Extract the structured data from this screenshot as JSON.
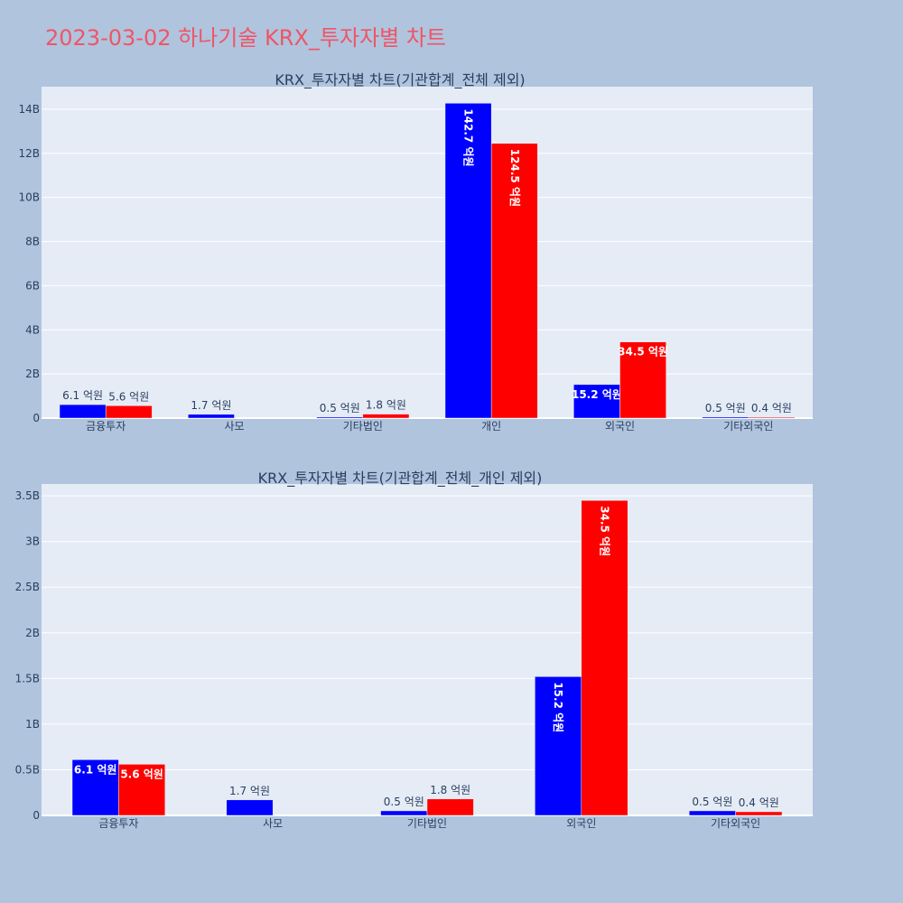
{
  "title": "2023-03-02 하나기술 KRX_투자자별 차트",
  "colors": {
    "series1": "#0000ff",
    "series2": "#ff0000",
    "background": "#b0c4de",
    "plot_bg": "#e5ecf6"
  },
  "chart_data": [
    {
      "type": "bar",
      "title": "KRX_투자자별 차트(기관합계_전체 제외)",
      "categories": [
        "금융투자",
        "사모",
        "기타법인",
        "개인",
        "외국인",
        "기타외국인"
      ],
      "series": [
        {
          "values": [
            0.61,
            0.17,
            0.05,
            14.27,
            1.52,
            0.05
          ],
          "labels": [
            "6.1 억원",
            "1.7 억원",
            "0.5 억원",
            "142.7 억원",
            "15.2 억원",
            "0.5 억원"
          ]
        },
        {
          "values": [
            0.56,
            0,
            0.18,
            12.45,
            3.45,
            0.04
          ],
          "labels": [
            "5.6 억원",
            "",
            "1.8 억원",
            "124.5 억원",
            "34.5 억원",
            "0.4 억원"
          ]
        }
      ],
      "y_ticks": [
        {
          "value": 0,
          "label": "0"
        },
        {
          "value": 2,
          "label": "2B"
        },
        {
          "value": 4,
          "label": "4B"
        },
        {
          "value": 6,
          "label": "6B"
        },
        {
          "value": 8,
          "label": "8B"
        },
        {
          "value": 10,
          "label": "10B"
        },
        {
          "value": 12,
          "label": "12B"
        },
        {
          "value": 14,
          "label": "14B"
        }
      ],
      "ylim": [
        0,
        15.02
      ],
      "grid": true
    },
    {
      "type": "bar",
      "title": "KRX_투자자별 차트(기관합계_전체_개인 제외)",
      "categories": [
        "금융투자",
        "사모",
        "기타법인",
        "외국인",
        "기타외국인"
      ],
      "series": [
        {
          "values": [
            0.61,
            0.17,
            0.05,
            1.52,
            0.05
          ],
          "labels": [
            "6.1 억원",
            "1.7 억원",
            "0.5 억원",
            "15.2 억원",
            "0.5 억원"
          ]
        },
        {
          "values": [
            0.56,
            0,
            0.18,
            3.45,
            0.04
          ],
          "labels": [
            "5.6 억원",
            "",
            "1.8 억원",
            "34.5 억원",
            "0.4 억원"
          ]
        }
      ],
      "y_ticks": [
        {
          "value": 0,
          "label": "0"
        },
        {
          "value": 0.5,
          "label": "0.5B"
        },
        {
          "value": 1,
          "label": "1B"
        },
        {
          "value": 1.5,
          "label": "1.5B"
        },
        {
          "value": 2,
          "label": "2B"
        },
        {
          "value": 2.5,
          "label": "2.5B"
        },
        {
          "value": 3,
          "label": "3B"
        },
        {
          "value": 3.5,
          "label": "3.5B"
        }
      ],
      "ylim": [
        0,
        3.63
      ],
      "grid": true
    }
  ]
}
